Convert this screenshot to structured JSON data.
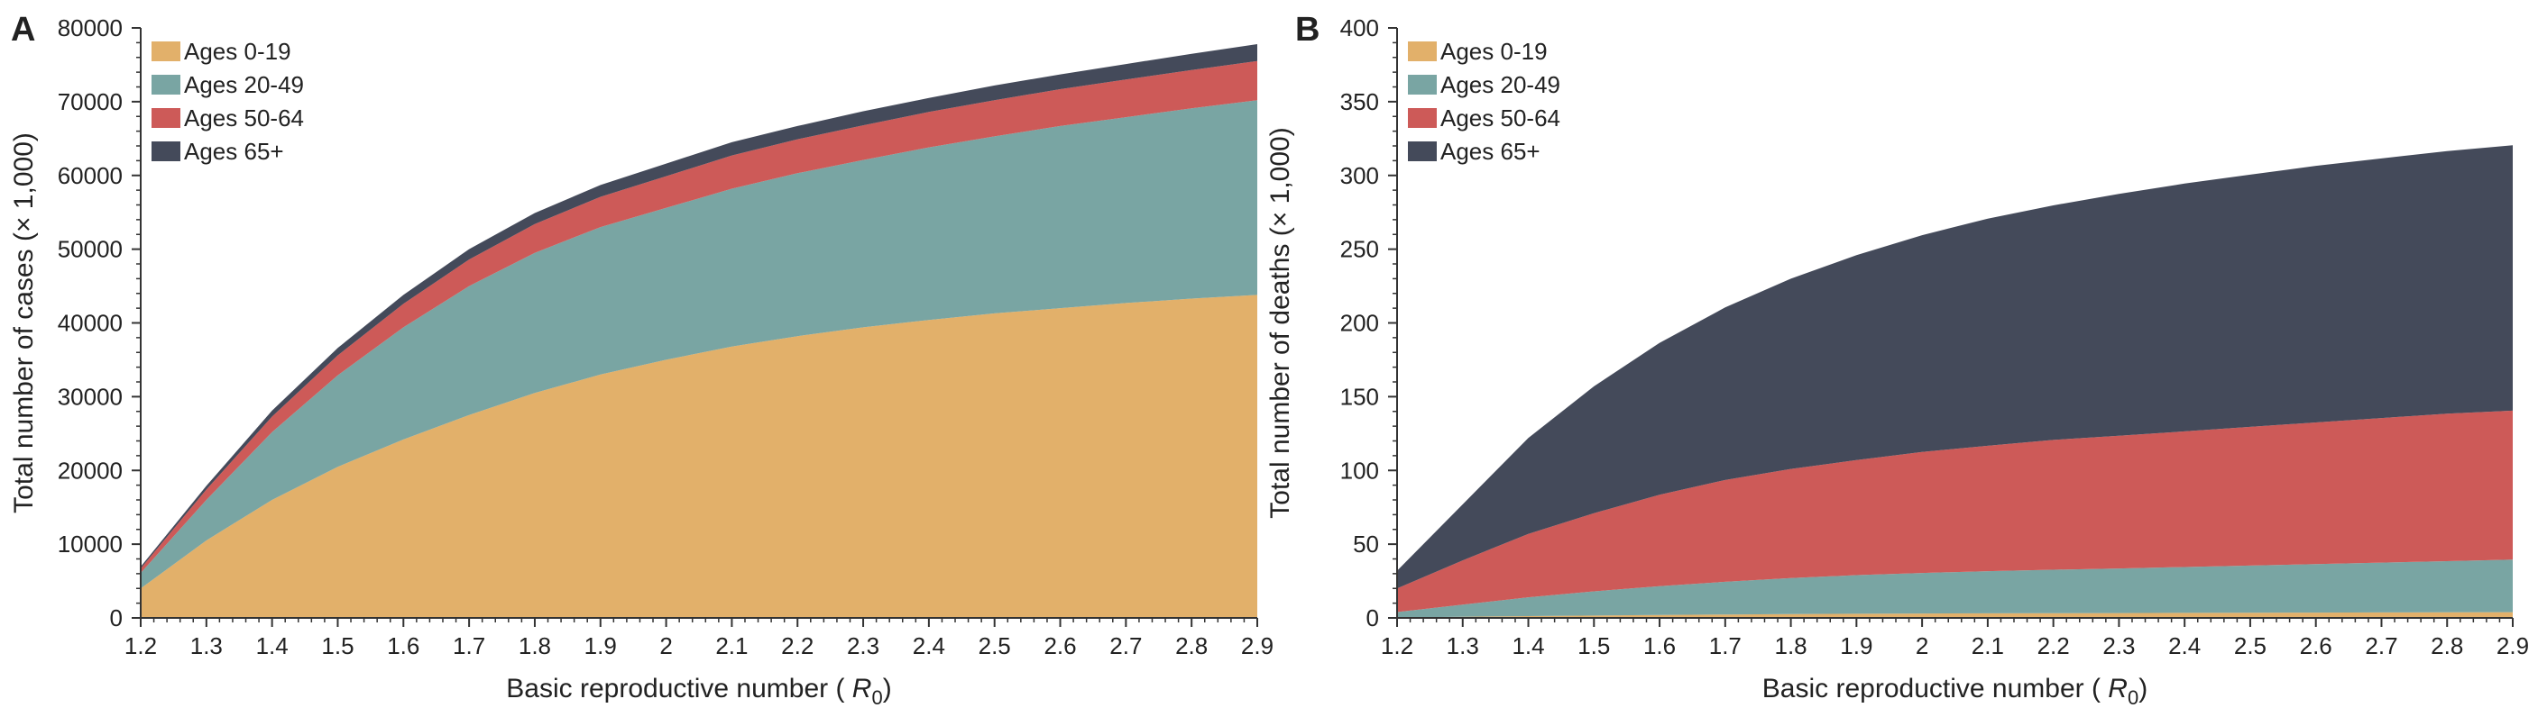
{
  "colors": {
    "ages_0_19": "#e2b06a",
    "ages_20_49": "#79a5a3",
    "ages_50_64": "#cd5a58",
    "ages_65_plus": "#444a5a",
    "axis": "#333333"
  },
  "chart_data": [
    {
      "type": "area",
      "stacked": true,
      "panel_letter": "A",
      "xlabel_prefix": "Basic reproductive number (",
      "xlabel_symbol": "R",
      "xlabel_sub": "0",
      "xlabel_suffix": ")",
      "ylabel": "Total number of cases (× 1,000)",
      "xlim": [
        1.2,
        2.9
      ],
      "ylim": [
        0,
        80000
      ],
      "x_ticks": [
        "1.2",
        "1.3",
        "1.4",
        "1.5",
        "1.6",
        "1.7",
        "1.8",
        "1.9",
        "2",
        "2.1",
        "2.2",
        "2.3",
        "2.4",
        "2.5",
        "2.6",
        "2.7",
        "2.8",
        "2.9"
      ],
      "y_ticks": [
        "0",
        "10000",
        "20000",
        "30000",
        "40000",
        "50000",
        "60000",
        "70000",
        "80000"
      ],
      "legend_position": "top-left",
      "grid": false,
      "x": [
        1.2,
        1.3,
        1.4,
        1.5,
        1.6,
        1.7,
        1.8,
        1.9,
        2.0,
        2.1,
        2.2,
        2.3,
        2.4,
        2.5,
        2.6,
        2.7,
        2.8,
        2.9
      ],
      "series": [
        {
          "name": "Ages 0-19",
          "color_key": "ages_0_19",
          "values": [
            4000,
            10500,
            16000,
            20500,
            24200,
            27500,
            30500,
            33000,
            35000,
            36800,
            38200,
            39400,
            40400,
            41300,
            42000,
            42700,
            43300,
            43800
          ]
        },
        {
          "name": "Ages 20-49",
          "color_key": "ages_20_49",
          "values": [
            2100,
            5500,
            9200,
            12400,
            15200,
            17500,
            19000,
            20000,
            20600,
            21400,
            22100,
            22700,
            23400,
            24000,
            24700,
            25200,
            25800,
            26400
          ]
        },
        {
          "name": "Ages 50-64",
          "color_key": "ages_50_64",
          "values": [
            600,
            1400,
            2100,
            2700,
            3200,
            3600,
            3900,
            4100,
            4300,
            4500,
            4600,
            4700,
            4800,
            4900,
            5000,
            5100,
            5200,
            5300
          ]
        },
        {
          "name": "Ages 65+",
          "color_key": "ages_65_plus",
          "values": [
            250,
            500,
            800,
            1000,
            1200,
            1400,
            1500,
            1600,
            1700,
            1800,
            1800,
            1900,
            1900,
            2000,
            2000,
            2100,
            2200,
            2300
          ]
        }
      ]
    },
    {
      "type": "area",
      "stacked": true,
      "panel_letter": "B",
      "xlabel_prefix": "Basic reproductive number (",
      "xlabel_symbol": "R",
      "xlabel_sub": "0",
      "xlabel_suffix": ")",
      "ylabel": "Total number of deaths (× 1,000)",
      "xlim": [
        1.2,
        2.9
      ],
      "ylim": [
        0,
        400
      ],
      "x_ticks": [
        "1.2",
        "1.3",
        "1.4",
        "1.5",
        "1.6",
        "1.7",
        "1.8",
        "1.9",
        "2",
        "2.1",
        "2.2",
        "2.3",
        "2.4",
        "2.5",
        "2.6",
        "2.7",
        "2.8",
        "2.9"
      ],
      "y_ticks": [
        "0",
        "50",
        "100",
        "150",
        "200",
        "250",
        "300",
        "350",
        "400"
      ],
      "legend_position": "top-left",
      "grid": false,
      "x": [
        1.2,
        1.3,
        1.4,
        1.5,
        1.6,
        1.7,
        1.8,
        1.9,
        2.0,
        2.1,
        2.2,
        2.3,
        2.4,
        2.5,
        2.6,
        2.7,
        2.8,
        2.9
      ],
      "series": [
        {
          "name": "Ages 0-19",
          "color_key": "ages_0_19",
          "values": [
            0.3,
            0.8,
            1.2,
            1.6,
            2.0,
            2.3,
            2.6,
            2.8,
            3.0,
            3.1,
            3.2,
            3.3,
            3.4,
            3.5,
            3.6,
            3.7,
            3.8,
            3.9
          ]
        },
        {
          "name": "Ages 20-49",
          "color_key": "ages_20_49",
          "values": [
            3.7,
            8.2,
            12.8,
            16.4,
            19.5,
            22.2,
            24.4,
            26.2,
            27.5,
            28.6,
            29.5,
            30.2,
            31.1,
            32.0,
            32.9,
            33.8,
            34.7,
            35.6
          ]
        },
        {
          "name": "Ages 50-64",
          "color_key": "ages_50_64",
          "values": [
            16,
            30,
            43,
            53,
            62,
            69,
            74,
            78,
            82,
            85,
            88,
            90,
            92,
            94,
            96,
            98,
            100,
            101
          ]
        },
        {
          "name": "Ages 65+",
          "color_key": "ages_65_plus",
          "values": [
            12,
            38,
            65,
            86,
            103,
            117,
            129,
            139,
            147,
            154,
            159,
            164,
            168,
            171,
            174,
            176,
            178,
            180
          ]
        }
      ]
    }
  ]
}
